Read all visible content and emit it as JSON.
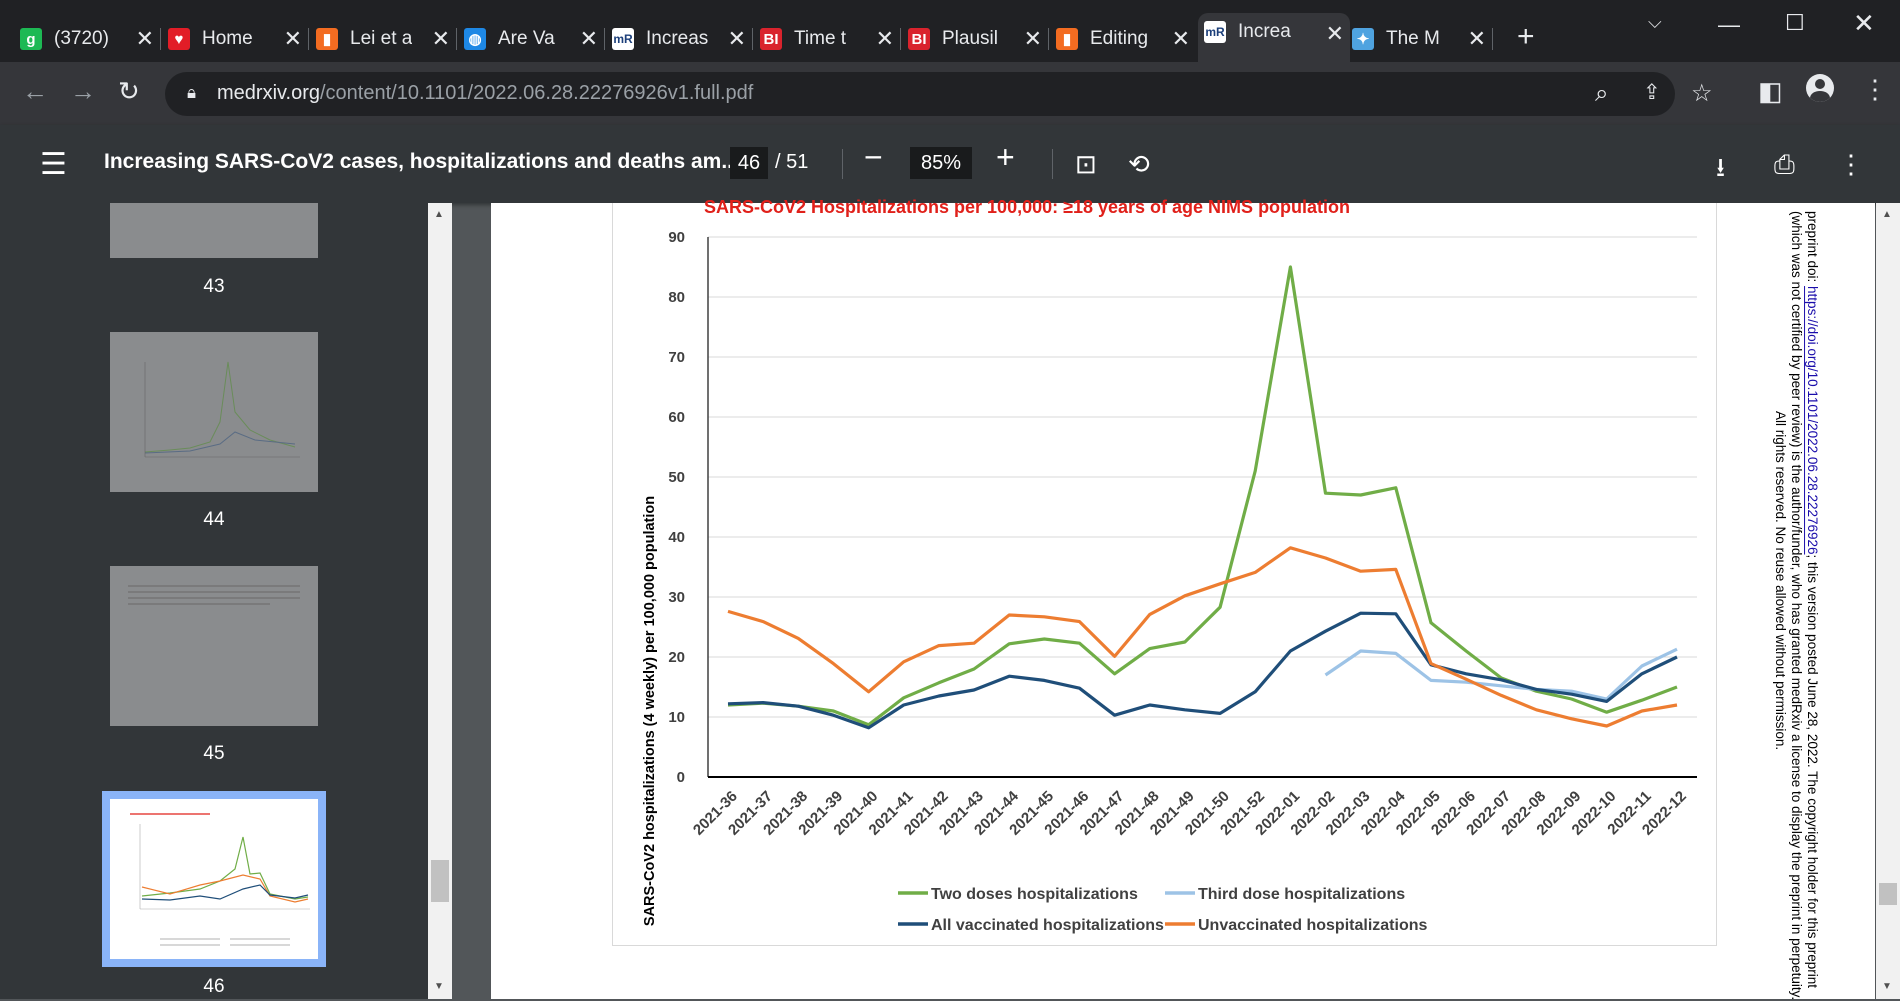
{
  "browser": {
    "tabs": [
      {
        "label": "(3720)",
        "fav": "g",
        "color": "#1db954"
      },
      {
        "label": "Home",
        "fav": "♥",
        "color": "#e21d27"
      },
      {
        "label": "Lei et a",
        "fav": "▮",
        "color": "#f36c21"
      },
      {
        "label": "Are Va",
        "fav": "◍",
        "color": "#1e88e5"
      },
      {
        "label": "Increas",
        "fav": "mR",
        "color": "#ffffff"
      },
      {
        "label": "Time t",
        "fav": "BI",
        "color": "#d9232d"
      },
      {
        "label": "Plausil",
        "fav": "BI",
        "color": "#d9232d"
      },
      {
        "label": "Editing",
        "fav": "▮",
        "color": "#f36c21"
      },
      {
        "label": "Increa",
        "fav": "mR",
        "color": "#ffffff"
      },
      {
        "label": "The M",
        "fav": "✦",
        "color": "#4fa3e0"
      }
    ],
    "url_host": "medrxiv.org",
    "url_path": "/content/10.1101/2022.06.28.22276926v1.full.pdf"
  },
  "pdf": {
    "title": "Increasing SARS-CoV2 cases, hospitalizations and deaths am...",
    "page": "46",
    "total": "/ 51",
    "zoom": "85%"
  },
  "thumbnails": [
    {
      "label": "43"
    },
    {
      "label": "44"
    },
    {
      "label": "45"
    },
    {
      "label": "46"
    }
  ],
  "notice": {
    "line1_pre": "preprint doi: ",
    "line1_link": "https://doi.org/10.1101/2022.06.28.22276926",
    "line1_post": "; this version posted June 28, 2022. The copyright holder for this preprint",
    "line2": "(which was not certified by peer review) is the author/funder, who has granted medRxiv a license to display the preprint in perpetuity.",
    "line3": "All rights reserved. No reuse allowed without permission."
  },
  "chart_data": {
    "type": "line",
    "title": "SARS-CoV2 Hospitalizations per 100,000: ≥18 years of age NIMS population",
    "ylabel": "SARS-CoV2 hospitalizations (4 weekly) per 100,000  population",
    "xlabel": "",
    "ylim": [
      0,
      90
    ],
    "yticks": [
      "0",
      "10",
      "20",
      "30",
      "40",
      "50",
      "60",
      "70",
      "80",
      "90"
    ],
    "categories": [
      "2021-36",
      "2021-37",
      "2021-38",
      "2021-39",
      "2021-40",
      "2021-41",
      "2021-42",
      "2021-43",
      "2021-44",
      "2021-45",
      "2021-46",
      "2021-47",
      "2021-48",
      "2021-49",
      "2021-50",
      "2021-52",
      "2022-01",
      "2022-02",
      "2022-03",
      "2022-04",
      "2022-05",
      "2022-06",
      "2022-07",
      "2022-08",
      "2022-09",
      "2022-10",
      "2022-11",
      "2022-12"
    ],
    "grid": true,
    "legend": "bottom",
    "series": [
      {
        "name": "Two doses hospitalizations",
        "color": "#70ad47",
        "values": [
          12,
          12.3,
          11.8,
          11,
          8.7,
          13.2,
          15.7,
          18,
          22.2,
          23,
          22.3,
          17.2,
          21.4,
          22.5,
          28.3,
          51,
          85,
          47.3,
          47,
          48.2,
          25.7,
          21,
          16.5,
          14.3,
          13,
          10.8,
          12.8,
          15
        ]
      },
      {
        "name": "Third dose hospitalizations",
        "color": "#9dc3e6",
        "values": [
          null,
          null,
          null,
          null,
          null,
          null,
          null,
          null,
          null,
          null,
          null,
          null,
          null,
          null,
          null,
          null,
          null,
          17,
          21,
          20.6,
          16.1,
          15.8,
          15.2,
          14.6,
          14.3,
          13,
          18.5,
          21.3
        ]
      },
      {
        "name": "All vaccinated hospitalizations",
        "color": "#1f4e79",
        "values": [
          12.2,
          12.4,
          11.8,
          10.3,
          8.2,
          12,
          13.5,
          14.5,
          16.8,
          16.1,
          14.8,
          10.3,
          12,
          11.2,
          10.6,
          14.2,
          21,
          24.3,
          27.3,
          27.2,
          18.7,
          17.2,
          16.2,
          14.6,
          13.8,
          12.6,
          17.2,
          20
        ]
      },
      {
        "name": "Unvaccinated hospitalizations",
        "color": "#ed7d31",
        "values": [
          27.6,
          25.9,
          23.1,
          18.9,
          14.2,
          19.2,
          21.9,
          22.3,
          27,
          26.7,
          25.9,
          20.1,
          27.1,
          30.2,
          32.2,
          34.1,
          38.2,
          36.5,
          34.3,
          34.6,
          18.9,
          16.3,
          13.6,
          11.2,
          9.7,
          8.5,
          11,
          12
        ]
      }
    ]
  }
}
